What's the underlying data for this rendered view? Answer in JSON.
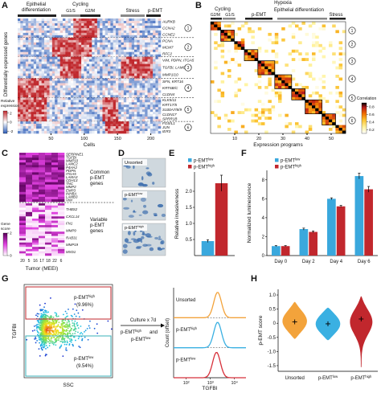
{
  "figure": {
    "A": {
      "letter": "A",
      "headers": {
        "epithelial": [
          "Epithelial",
          "differentiation"
        ],
        "cycling": "Cycling",
        "g1s": "G1/S",
        "g2m": "G2/M",
        "stress": "Stress",
        "pemt": "p-EMT"
      },
      "y_label": "Differentially expressed genes",
      "x_label": "Cells",
      "xlim": [
        0,
        215
      ],
      "xticks": [
        50,
        100,
        150,
        200
      ],
      "colorbar_label": [
        "Relative",
        "expression"
      ],
      "colorbar_lim": [
        -2.5,
        2.5
      ],
      "colorbar_ticks": [
        2,
        0,
        -2
      ],
      "gene_groups": [
        [
          "AURKB",
          "CCNA2",
          "CCNE2"
        ],
        [
          "PCNA",
          "MCM7",
          "RFC2"
        ],
        [
          "VIM, PDPN, ITGA5",
          "TGFBI, LAMC2",
          "MMP1/10"
        ],
        [
          "SFN, KRT16",
          "KRT6B/C",
          "CLDN4"
        ],
        [
          "KLK5/11",
          "KRT17/5",
          "S100A7/8/9",
          "CLDN17",
          "SPRR1B"
        ],
        [
          "FOS/L1",
          "JUN",
          "IER3"
        ]
      ],
      "clusters": [
        "1",
        "2",
        "3",
        "4",
        "5",
        "6"
      ]
    },
    "B": {
      "letter": "B",
      "headers": {
        "hypoxia": "Hypoxia",
        "cycling": "Cycling",
        "g2m": "G2/M",
        "g1s": "G1/S",
        "pemt": "p-EMT",
        "epithelial": "Epithelial differentiation",
        "stress": "Stress"
      },
      "x_label": "Expression programs",
      "xlim": [
        0,
        56
      ],
      "xticks": [
        10,
        20,
        30,
        40,
        50
      ],
      "clusters": [
        "1",
        "2",
        "3",
        "4",
        "5",
        "6"
      ],
      "colorbar_label": "Correlation",
      "colorbar_lim": [
        0.1,
        0.9
      ],
      "colorbar_ticks": [
        0.8,
        0.6,
        0.4,
        0.2
      ]
    },
    "C": {
      "letter": "C",
      "genes_common": [
        "SERPINE1",
        "TGFBI",
        "MMP10",
        "LAMC2",
        "P4HA2",
        "PDPN",
        "ITGA5",
        "LAMA3",
        "CDH13",
        "TNC",
        "MMP2",
        "EMP3",
        "INHBA",
        "LAMB3",
        "VIM"
      ],
      "genes_variable": [
        "THBS2",
        "CXCL14",
        "FN1",
        "MMP9",
        "RAB31",
        "MMP19",
        "MXD1"
      ],
      "common_label": [
        "Common",
        "p-EMT",
        "genes"
      ],
      "variable_label": [
        "Variable",
        "p-EMT",
        "genes"
      ],
      "tumors": [
        "20",
        "5",
        "16",
        "17",
        "18",
        "22",
        "6"
      ],
      "x_label": "Tumor (MEEI)",
      "colorbar_label": [
        "Gene",
        "score"
      ],
      "colorbar_lim": [
        0,
        2
      ],
      "colorbar_ticks": [
        2,
        0
      ]
    },
    "D": {
      "letter": "D",
      "panels": [
        {
          "text": "Unsorted"
        },
        {
          "text": "p-EMT",
          "sup": "low"
        },
        {
          "text": "p-EMT",
          "sup": "high"
        }
      ]
    },
    "G": {
      "letter": "G",
      "y_label": "TGFBI",
      "x_label": "SSC",
      "gate_high": {
        "text": "p-EMT",
        "sup": "high",
        "pct": "(9.96%)"
      },
      "gate_low": {
        "text": "p-EMT",
        "sup": "low",
        "pct": "(9.54%)"
      },
      "culture": "Culture x 7d",
      "sorted_1": {
        "text": "p-EMT",
        "sup": "high"
      },
      "and": "and",
      "sorted_2": {
        "text": "p-EMT",
        "sup": "low"
      }
    },
    "H": {
      "letter": "H"
    }
  },
  "chart_data": [
    {
      "type": "bar",
      "panel": "E",
      "y_label": "Relative invasiveness",
      "categories": [
        null
      ],
      "series": [
        {
          "name": {
            "text": "p-EMT",
            "sup": "low"
          },
          "color": "#3aa8dd",
          "values": [
            0.45
          ],
          "errors": [
            0.04
          ]
        },
        {
          "name": {
            "text": "p-EMT",
            "sup": "high"
          },
          "color": "#c1272d",
          "values": [
            2.25
          ],
          "errors": [
            0.25
          ]
        }
      ],
      "ylim": [
        0,
        2.6
      ],
      "yticks": [
        0.5,
        {
          "value": 1,
          "label": "1.0"
        },
        1.5,
        {
          "value": 2,
          "label": "2.0"
        }
      ],
      "legend": "top-left"
    },
    {
      "type": "bar",
      "panel": "F",
      "y_label": "Normalized luminescence",
      "categories": [
        "Day 0",
        "Day 2",
        "Day 4",
        "Day 6"
      ],
      "series": [
        {
          "name": {
            "text": "p-EMT",
            "sup": "low"
          },
          "color": "#3aa8dd",
          "values": [
            1.0,
            2.8,
            6.0,
            8.4
          ],
          "errors": [
            0.05,
            0.1,
            0.1,
            0.3
          ]
        },
        {
          "name": {
            "text": "p-EMT",
            "sup": "high"
          },
          "color": "#c1272d",
          "values": [
            1.0,
            2.5,
            5.2,
            7.0
          ],
          "errors": [
            0.05,
            0.1,
            0.1,
            0.3
          ]
        }
      ],
      "ylim": [
        0,
        9
      ],
      "yticks": [
        0,
        2,
        4,
        6,
        8
      ],
      "legend": "top-left"
    },
    {
      "type": "density",
      "y_label": "Count (offset)",
      "x_label": "TGFBI",
      "log_x": true,
      "xlim": [
        30,
        30000
      ],
      "xticks": [
        {
          "value": 100,
          "label": "10²"
        },
        {
          "value": 1000,
          "label": "10³"
        },
        {
          "value": 10000,
          "label": "10⁴"
        }
      ],
      "series": [
        {
          "name": {
            "text": "Unsorted"
          },
          "color": "#f3a33b",
          "peak": 2000
        },
        {
          "name": {
            "text": "p-EMT",
            "sup": "high"
          },
          "color": "#3ab0e2",
          "peak": 2000
        },
        {
          "name": {
            "text": "p-EMT",
            "sup": "low"
          },
          "color": "#d7303a",
          "peak": 1800
        }
      ]
    },
    {
      "type": "violin",
      "y_label": "p-EMT score",
      "categories": [
        {
          "text": "Unsorted"
        },
        {
          "text": "p-EMT",
          "sup": "low"
        },
        {
          "text": "p-EMT",
          "sup": "high"
        }
      ],
      "colors": [
        "#f3a33b",
        "#3ab0e2",
        "#c1272d"
      ],
      "means": [
        0.05,
        -0.02,
        0.15
      ],
      "mins": [
        -0.55,
        -0.6,
        -1.55
      ],
      "maxs": [
        0.75,
        0.55,
        0.95
      ],
      "ylim": [
        -1.7,
        1.2
      ],
      "yticks": [
        {
          "value": 1,
          "label": "1.0"
        },
        0.5,
        0,
        -0.5,
        {
          "value": -1,
          "label": "-1.0"
        },
        -1.5
      ]
    }
  ]
}
